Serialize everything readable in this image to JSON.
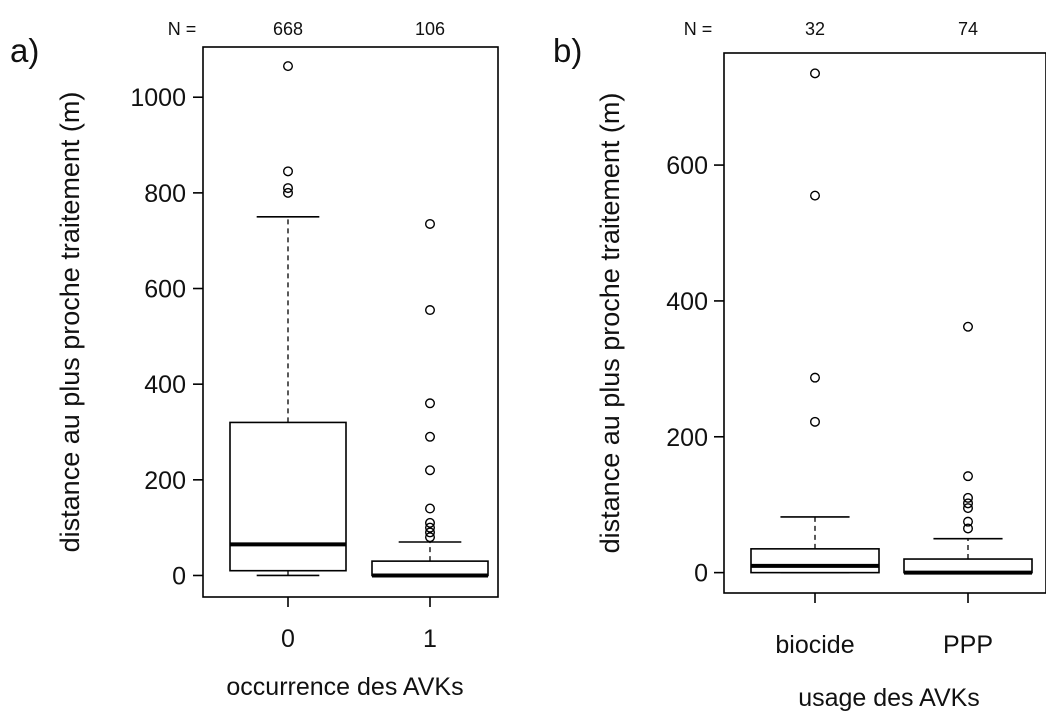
{
  "chart_data": [
    {
      "type": "box",
      "panel_label": "a)",
      "n_label": "N =",
      "ylabel": "distance au plus proche traitement (m)",
      "xlabel": "occurrence des AVKs",
      "ylim": [
        -45,
        1105
      ],
      "yticks": [
        0,
        200,
        400,
        600,
        800,
        1000
      ],
      "categories": [
        "0",
        "1"
      ],
      "n": [
        "668",
        "106"
      ],
      "boxes": [
        {
          "category": "0",
          "whisker_low": 0,
          "q1": 10,
          "median": 65,
          "q3": 320,
          "whisker_high": 750,
          "outliers": [
            1065,
            845,
            810,
            800
          ]
        },
        {
          "category": "1",
          "whisker_low": 0,
          "q1": 0,
          "median": 0,
          "q3": 30,
          "whisker_high": 70,
          "outliers": [
            735,
            555,
            360,
            290,
            220,
            140,
            110,
            100,
            90,
            80
          ]
        }
      ]
    },
    {
      "type": "box",
      "panel_label": "b)",
      "n_label": "N =",
      "ylabel": "distance au plus proche traitement (m)",
      "xlabel": "usage des AVKs",
      "ylim": [
        -30,
        765
      ],
      "yticks": [
        0,
        200,
        400,
        600
      ],
      "categories": [
        "biocide",
        "PPP"
      ],
      "n": [
        "32",
        "74"
      ],
      "boxes": [
        {
          "category": "biocide",
          "whisker_low": 0,
          "q1": 0,
          "median": 10,
          "q3": 35,
          "whisker_high": 82,
          "outliers": [
            735,
            555,
            287,
            222
          ]
        },
        {
          "category": "PPP",
          "whisker_low": 0,
          "q1": 0,
          "median": 0,
          "q3": 20,
          "whisker_high": 50,
          "outliers": [
            362,
            142,
            110,
            102,
            95,
            75,
            65
          ]
        }
      ]
    }
  ]
}
